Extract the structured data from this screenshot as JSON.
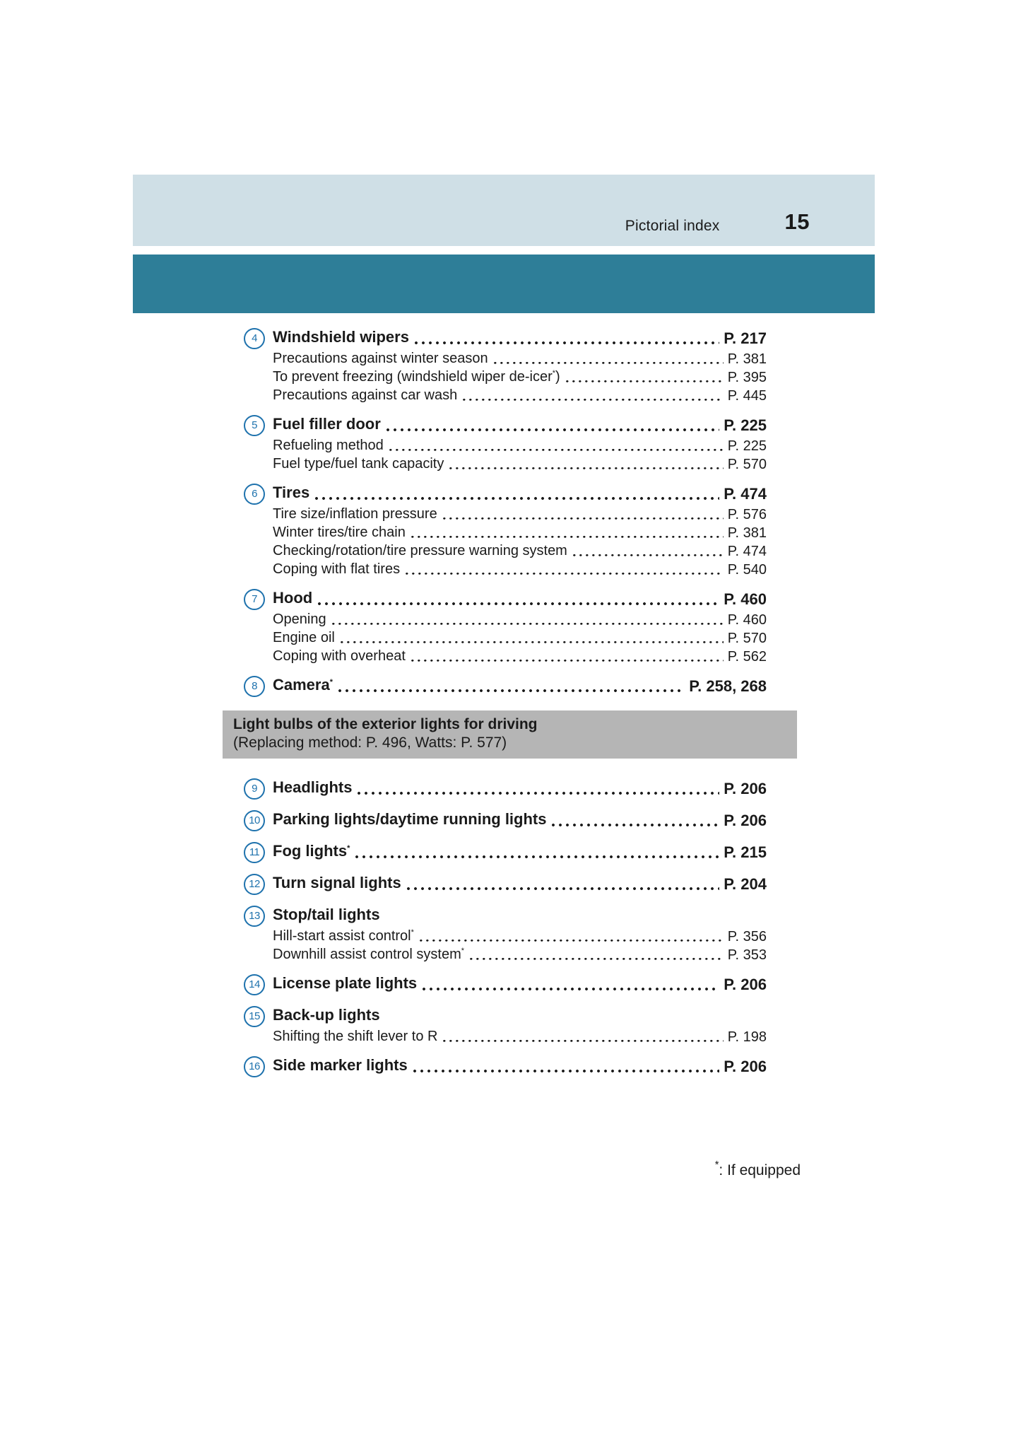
{
  "header": {
    "section_label": "Pictorial index",
    "page_number": "15"
  },
  "footnote": {
    "symbol": "*",
    "text": ": If equipped"
  },
  "list": [
    {
      "kind": "item",
      "num": "4",
      "label": "Windshield wipers",
      "page": "P. 217",
      "subs": [
        {
          "label": "Precautions against winter season",
          "page": "P. 381"
        },
        {
          "label": "To prevent freezing (windshield wiper de-icer",
          "sup": "*",
          "post": ")",
          "page": "P. 395"
        },
        {
          "label": "Precautions against car wash",
          "page": "P. 445"
        }
      ]
    },
    {
      "kind": "item",
      "num": "5",
      "label": "Fuel filler door",
      "page": "P. 225",
      "subs": [
        {
          "label": "Refueling method",
          "page": "P. 225"
        },
        {
          "label": "Fuel type/fuel tank capacity",
          "page": "P. 570"
        }
      ]
    },
    {
      "kind": "item",
      "num": "6",
      "label": "Tires",
      "page": "P. 474",
      "subs": [
        {
          "label": "Tire size/inflation pressure",
          "page": "P. 576"
        },
        {
          "label": "Winter tires/tire chain",
          "page": "P. 381"
        },
        {
          "label": "Checking/rotation/tire pressure warning system",
          "page": "P. 474"
        },
        {
          "label": "Coping with flat tires",
          "page": "P. 540"
        }
      ]
    },
    {
      "kind": "item",
      "num": "7",
      "label": "Hood",
      "page": "P. 460",
      "subs": [
        {
          "label": "Opening",
          "page": "P. 460"
        },
        {
          "label": "Engine oil",
          "page": "P. 570"
        },
        {
          "label": "Coping with overheat",
          "page": "P. 562"
        }
      ]
    },
    {
      "kind": "item",
      "num": "8",
      "label": "Camera",
      "sup": "*",
      "page": "P. 258, 268",
      "subs": []
    },
    {
      "kind": "banner",
      "title": "Light bulbs of the exterior lights for driving",
      "subtitle": "(Replacing method: P. 496, Watts: P. 577)"
    },
    {
      "kind": "item",
      "num": "9",
      "label": "Headlights",
      "page": "P. 206",
      "subs": []
    },
    {
      "kind": "item",
      "num": "10",
      "label": "Parking lights/daytime running lights",
      "page": "P. 206",
      "subs": []
    },
    {
      "kind": "item",
      "num": "11",
      "label": "Fog lights",
      "sup": "*",
      "page": "P. 215",
      "subs": []
    },
    {
      "kind": "item",
      "num": "12",
      "label": "Turn signal lights",
      "page": "P. 204",
      "subs": []
    },
    {
      "kind": "item",
      "num": "13",
      "label": "Stop/tail lights",
      "page": null,
      "subs": [
        {
          "label": "Hill-start assist control",
          "sup": "*",
          "page": "P. 356"
        },
        {
          "label": "Downhill assist control system",
          "sup": "*",
          "page": "P. 353"
        }
      ]
    },
    {
      "kind": "item",
      "num": "14",
      "label": "License plate lights",
      "page": "P. 206",
      "subs": []
    },
    {
      "kind": "item",
      "num": "15",
      "label": "Back-up lights",
      "page": null,
      "subs": [
        {
          "label": "Shifting the shift lever to R",
          "page": "P. 198"
        }
      ]
    },
    {
      "kind": "item",
      "num": "16",
      "label": "Side marker lights",
      "page": "P. 206",
      "subs": []
    }
  ],
  "colors": {
    "band_light": "#cfdfe6",
    "band_teal": "#2e7e98",
    "banner_gray": "#b5b5b5",
    "badge_blue": "#1e72ad",
    "text": "#1a1a1a"
  }
}
